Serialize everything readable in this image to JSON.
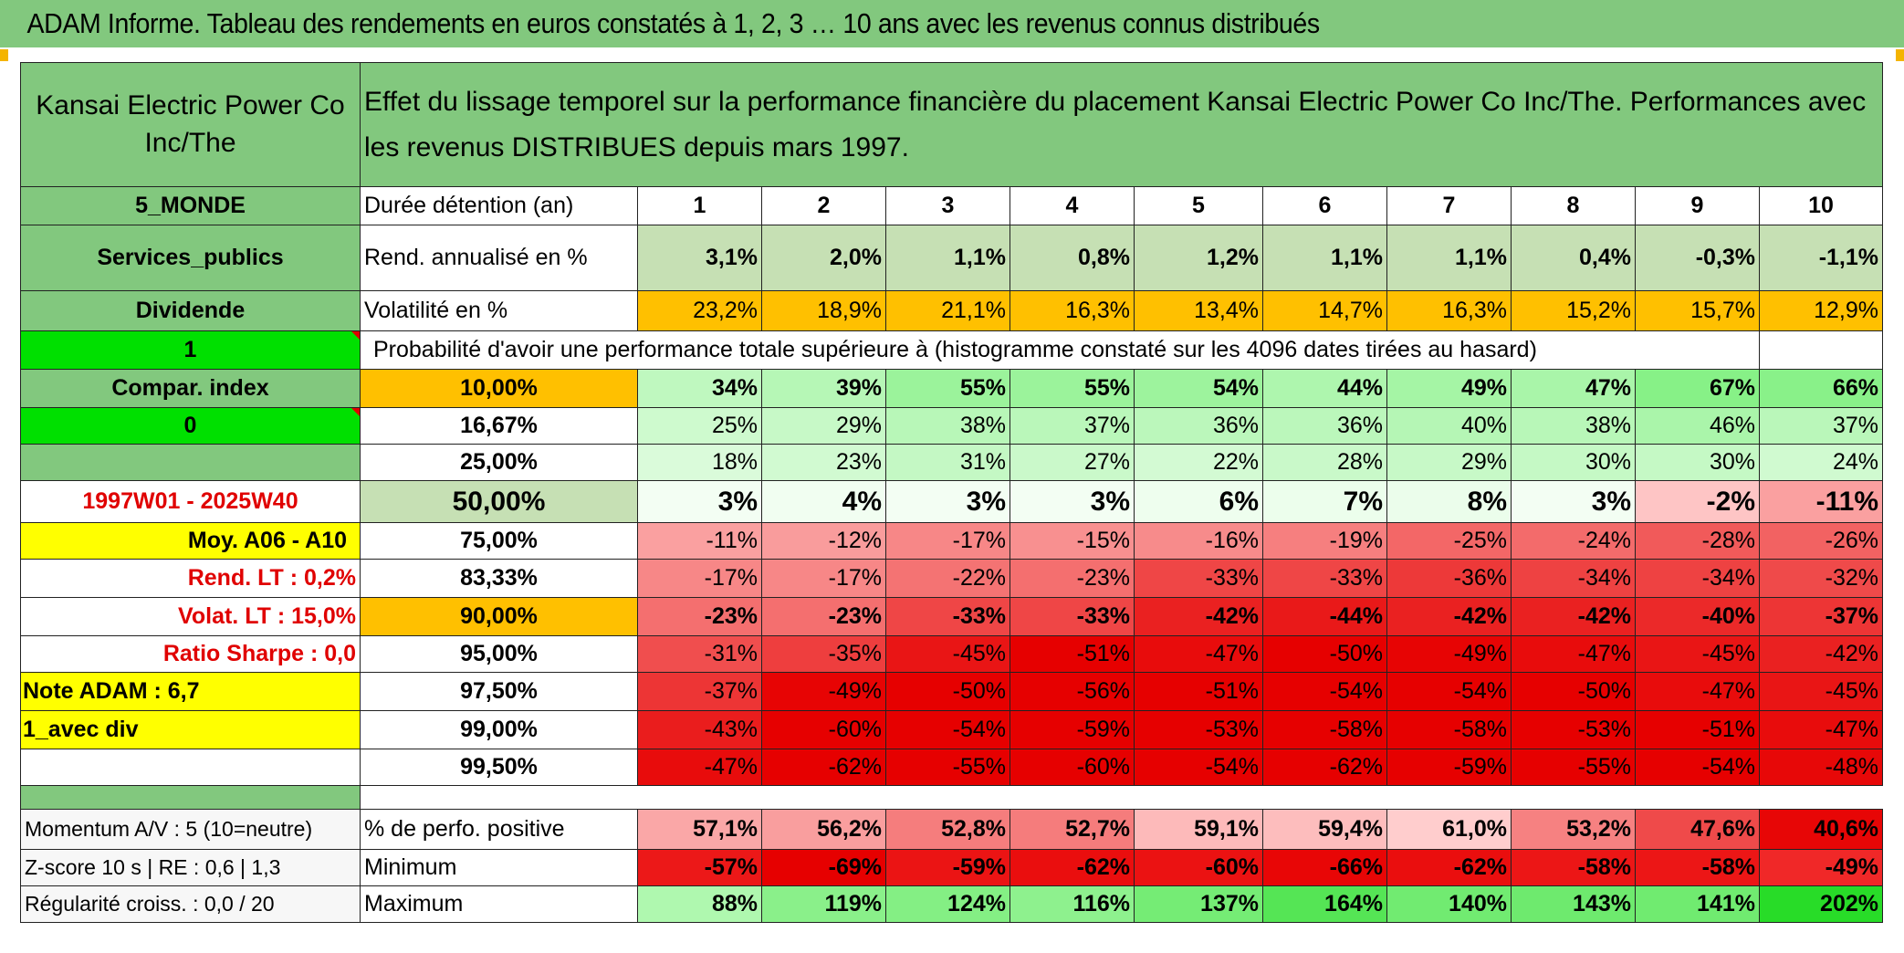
{
  "title": "ADAM Informe. Tableau des rendements en euros constatés à 1, 2, 3 … 10 ans avec les revenus connus distribués",
  "left": {
    "company": "Kansai Electric Power Co Inc/The",
    "region": "5_MONDE",
    "sector": "Services_publics",
    "type": "Dividende",
    "flag1": "1",
    "compar": "Compar. index",
    "flag0": "0",
    "period": "1997W01 - 2025W40",
    "moy": "Moy. A06 - A10",
    "rend_lt": "Rend. LT :   0,2%",
    "volat_lt": "Volat. LT :   15,0%",
    "sharpe": "Ratio Sharpe :    0,0",
    "note": "Note ADAM : 6,7",
    "avec_div": "1_avec div",
    "momentum": "Momentum A/V : 5 (10=neutre)",
    "zscore": "Z-score 10 s | RE : 0,6 | 1,3",
    "regul": "Régularité croiss. : 0,0 / 20"
  },
  "header": "Effet du lissage temporel sur la performance financière du placement Kansai Electric Power Co Inc/The. Performances avec les revenus DISTRIBUES depuis mars 1997.",
  "duree_label": "Durée détention (an)",
  "years": [
    "1",
    "2",
    "3",
    "4",
    "5",
    "6",
    "7",
    "8",
    "9",
    "10"
  ],
  "rend_label": "Rend. annualisé en %",
  "rend": [
    "3,1%",
    "2,0%",
    "1,1%",
    "0,8%",
    "1,2%",
    "1,1%",
    "1,1%",
    "0,4%",
    "-0,3%",
    "-1,1%"
  ],
  "vol_label": "Volatilité en %",
  "vol": [
    "23,2%",
    "18,9%",
    "21,1%",
    "16,3%",
    "13,4%",
    "14,7%",
    "16,3%",
    "15,2%",
    "15,7%",
    "12,9%"
  ],
  "prob_label": "Probabilité d'avoir une performance totale supérieure à (histogramme constaté sur les 4096 dates tirées au hasard)",
  "prob_rows": [
    {
      "pct": "10,00%",
      "vals": [
        "34%",
        "39%",
        "55%",
        "55%",
        "54%",
        "44%",
        "49%",
        "47%",
        "67%",
        "66%"
      ]
    },
    {
      "pct": "16,67%",
      "vals": [
        "25%",
        "29%",
        "38%",
        "37%",
        "36%",
        "36%",
        "40%",
        "38%",
        "46%",
        "37%"
      ]
    },
    {
      "pct": "25,00%",
      "vals": [
        "18%",
        "23%",
        "31%",
        "27%",
        "22%",
        "28%",
        "29%",
        "30%",
        "30%",
        "24%"
      ]
    },
    {
      "pct": "50,00%",
      "vals": [
        "3%",
        "4%",
        "3%",
        "3%",
        "6%",
        "7%",
        "8%",
        "3%",
        "-2%",
        "-11%"
      ]
    },
    {
      "pct": "75,00%",
      "vals": [
        "-11%",
        "-12%",
        "-17%",
        "-15%",
        "-16%",
        "-19%",
        "-25%",
        "-24%",
        "-28%",
        "-26%"
      ]
    },
    {
      "pct": "83,33%",
      "vals": [
        "-17%",
        "-17%",
        "-22%",
        "-23%",
        "-33%",
        "-33%",
        "-36%",
        "-34%",
        "-34%",
        "-32%"
      ]
    },
    {
      "pct": "90,00%",
      "vals": [
        "-23%",
        "-23%",
        "-33%",
        "-33%",
        "-42%",
        "-44%",
        "-42%",
        "-42%",
        "-40%",
        "-37%"
      ]
    },
    {
      "pct": "95,00%",
      "vals": [
        "-31%",
        "-35%",
        "-45%",
        "-51%",
        "-47%",
        "-50%",
        "-49%",
        "-47%",
        "-45%",
        "-42%"
      ]
    },
    {
      "pct": "97,50%",
      "vals": [
        "-37%",
        "-49%",
        "-50%",
        "-56%",
        "-51%",
        "-54%",
        "-54%",
        "-50%",
        "-47%",
        "-45%"
      ]
    },
    {
      "pct": "99,00%",
      "vals": [
        "-43%",
        "-60%",
        "-54%",
        "-59%",
        "-53%",
        "-58%",
        "-58%",
        "-53%",
        "-51%",
        "-47%"
      ]
    },
    {
      "pct": "99,50%",
      "vals": [
        "-47%",
        "-62%",
        "-55%",
        "-60%",
        "-54%",
        "-62%",
        "-59%",
        "-55%",
        "-54%",
        "-48%"
      ]
    }
  ],
  "pos_label": "% de perfo. positive",
  "pos": [
    "57,1%",
    "56,2%",
    "52,8%",
    "52,7%",
    "59,1%",
    "59,4%",
    "61,0%",
    "53,2%",
    "47,6%",
    "40,6%"
  ],
  "min_label": "Minimum",
  "min": [
    "-57%",
    "-69%",
    "-59%",
    "-62%",
    "-60%",
    "-66%",
    "-62%",
    "-58%",
    "-58%",
    "-49%"
  ],
  "max_label": "Maximum",
  "max": [
    "88%",
    "119%",
    "124%",
    "116%",
    "137%",
    "164%",
    "140%",
    "143%",
    "141%",
    "202%"
  ]
}
